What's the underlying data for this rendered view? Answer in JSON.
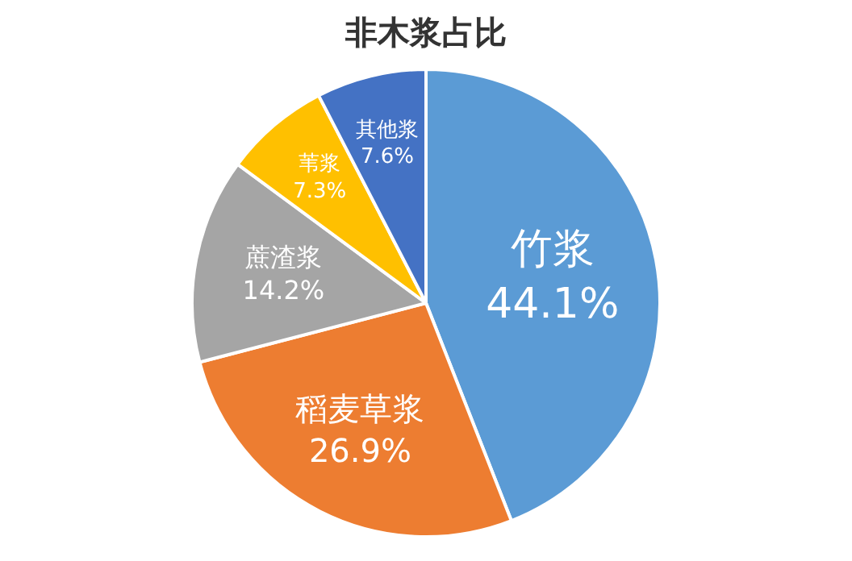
{
  "chart_data": {
    "type": "pie",
    "title": "非木浆占比",
    "categories": [
      "竹浆",
      "稻麦草浆",
      "蔗渣浆",
      "苇浆",
      "其他浆"
    ],
    "values": [
      44.1,
      26.9,
      14.2,
      7.3,
      7.6
    ],
    "value_labels": [
      "44.1%",
      "26.9%",
      "14.2%",
      "7.3%",
      "7.6%"
    ],
    "colors": [
      "#5b9bd5",
      "#ed7d31",
      "#a5a5a5",
      "#ffc000",
      "#4472c4"
    ],
    "legend": false
  }
}
